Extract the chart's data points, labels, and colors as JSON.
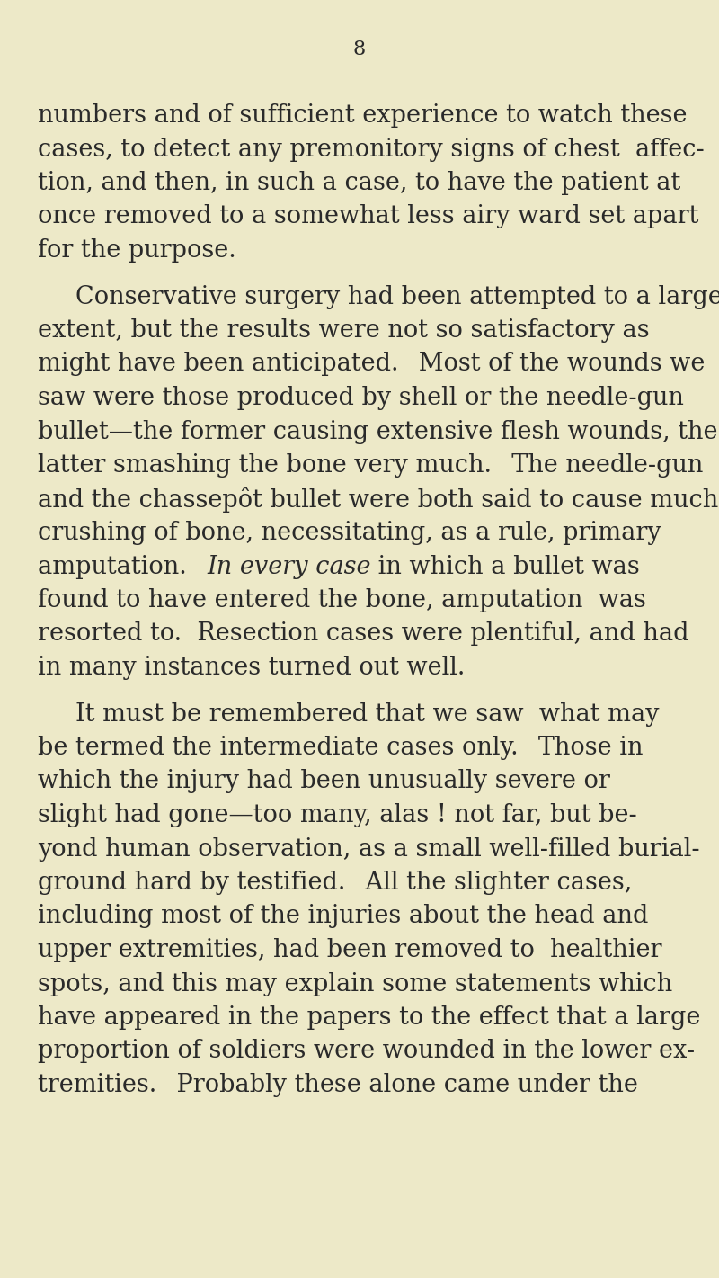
{
  "background_color": "#ede9c8",
  "page_number": "8",
  "text_color": "#2a2a2a",
  "paragraphs": [
    {
      "indent": false,
      "lines": [
        {
          "text": "numbers and of sufficient experience to watch these",
          "italic": false
        },
        {
          "text": "cases, to detect any premonitory signs of chest  affec-",
          "italic": false
        },
        {
          "text": "tion, and then, in such a case, to have the patient at",
          "italic": false
        },
        {
          "text": "once removed to a somewhat less airy ward set apart",
          "italic": false
        },
        {
          "text": "for the purpose.",
          "italic": false
        }
      ]
    },
    {
      "indent": true,
      "lines": [
        {
          "text": "Conservative surgery had been attempted to a large",
          "italic": false
        },
        {
          "text": "extent, but the results were not so satisfactory as",
          "italic": false
        },
        {
          "text": "might have been anticipated.  Most of the wounds we",
          "italic": false
        },
        {
          "text": "saw were those produced by shell or the needle-gun",
          "italic": false
        },
        {
          "text": "bullet—the former causing extensive flesh wounds, the",
          "italic": false
        },
        {
          "text": "latter smashing the bone very much.  The needle-gun",
          "italic": false
        },
        {
          "text": "and the chassepôt bullet were both said to cause much",
          "italic": false
        },
        {
          "text": "crushing of bone, necessitating, as a rule, primary",
          "italic": false
        },
        {
          "text": "amputation.  In every case in which a bullet was",
          "italic": false,
          "mixed": [
            {
              "text": "amputation.  ",
              "italic": false
            },
            {
              "text": "In every case",
              "italic": true
            },
            {
              "text": " in which a bullet was",
              "italic": false
            }
          ]
        },
        {
          "text": "found to have entered the bone, amputation  was",
          "italic": false
        },
        {
          "text": "resorted to.  Resection cases were plentiful, and had",
          "italic": false
        },
        {
          "text": "in many instances turned out well.",
          "italic": false
        }
      ]
    },
    {
      "indent": true,
      "lines": [
        {
          "text": "It must be remembered that we saw  what may",
          "italic": false
        },
        {
          "text": "be termed the intermediate cases only.  Those in",
          "italic": false
        },
        {
          "text": "which the injury had been unusually severe or",
          "italic": false
        },
        {
          "text": "slight had gone—too many, alas ! not far, but be-",
          "italic": false
        },
        {
          "text": "yond human observation, as a small well-filled burial-",
          "italic": false
        },
        {
          "text": "ground hard by testified.  All the slighter cases,",
          "italic": false
        },
        {
          "text": "including most of the injuries about the head and",
          "italic": false
        },
        {
          "text": "upper extremities, had been removed to  healthier",
          "italic": false
        },
        {
          "text": "spots, and this may explain some statements which",
          "italic": false
        },
        {
          "text": "have appeared in the papers to the effect that a large",
          "italic": false
        },
        {
          "text": "proportion of soldiers were wounded in the lower ex-",
          "italic": false
        },
        {
          "text": "tremities.  Probably these alone came under the",
          "italic": false
        }
      ]
    }
  ]
}
